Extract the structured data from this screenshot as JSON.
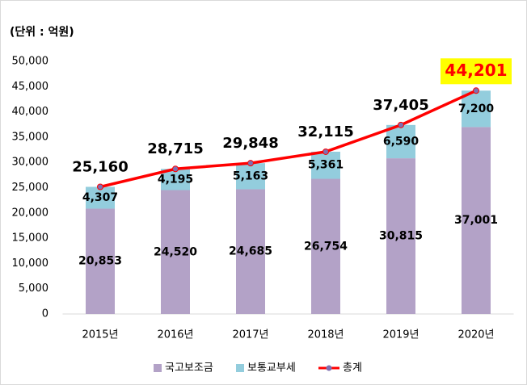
{
  "chart_data": {
    "type": "stacked-bar-line",
    "unit": "(단위 : 억원)",
    "categories": [
      "2015년",
      "2016년",
      "2017년",
      "2018년",
      "2019년",
      "2020년"
    ],
    "series": [
      {
        "name": "국고보조금",
        "color": "#b3a2c7",
        "values": [
          20853,
          24520,
          24685,
          26754,
          30815,
          37001
        ],
        "value_labels": [
          "20,853",
          "24,520",
          "24,685",
          "26,754",
          "30,815",
          "37,001"
        ]
      },
      {
        "name": "보통교부세",
        "color": "#93cddd",
        "values": [
          4307,
          4195,
          5163,
          5361,
          6590,
          7200
        ],
        "value_labels": [
          "4,307",
          "4,195",
          "5,163",
          "5,361",
          "6,590",
          "7,200"
        ]
      },
      {
        "name": "총계",
        "type": "line",
        "color": "#ff0000",
        "marker_color": "#7f6fb0",
        "values": [
          25160,
          28715,
          29848,
          32115,
          37405,
          44201
        ],
        "value_labels": [
          "25,160",
          "28,715",
          "29,848",
          "32,115",
          "37,405",
          "44,201"
        ]
      }
    ],
    "ylim": [
      0,
      50000
    ],
    "yticks": [
      0,
      {
        "value": 5000,
        "label": "5,000"
      },
      {
        "value": 10000,
        "label": "10,000"
      },
      {
        "value": 15000,
        "label": "15,000"
      },
      {
        "value": 20000,
        "label": "20,000"
      },
      {
        "value": 25000,
        "label": "25,000"
      },
      {
        "value": 30000,
        "label": "30,000"
      },
      {
        "value": 35000,
        "label": "35,000"
      },
      {
        "value": 40000,
        "label": "40,000"
      },
      {
        "value": 45000,
        "label": "45,000"
      },
      {
        "value": 50000,
        "label": "50,000"
      }
    ],
    "grid": false,
    "legend": "bottom"
  }
}
